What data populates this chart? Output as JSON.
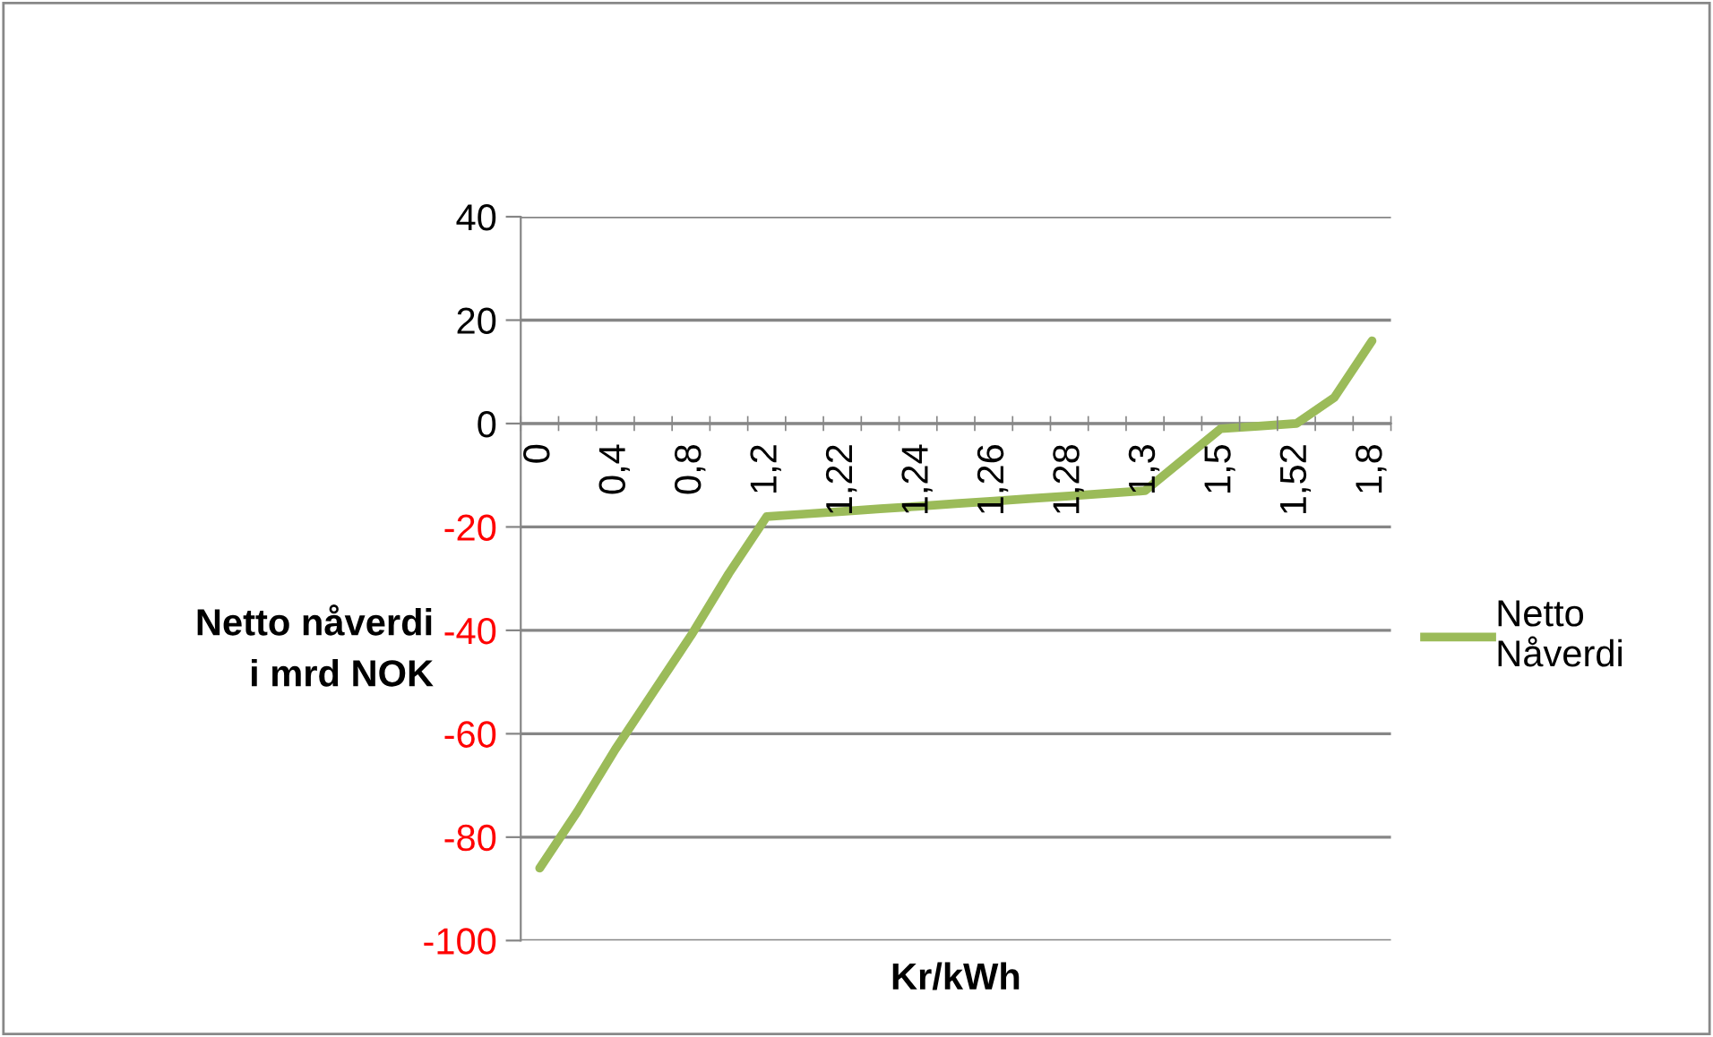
{
  "chart_data": {
    "type": "line",
    "xlabel": "Kr/kWh",
    "ylabel": "Netto nåverdi\ni mrd NOK",
    "categories": [
      "0",
      null,
      "0,4",
      null,
      "0,8",
      null,
      "1,2",
      null,
      "1,22",
      null,
      "1,24",
      null,
      "1,26",
      null,
      "1,28",
      null,
      "1,3",
      null,
      "1,5",
      null,
      "1,52",
      null,
      "1,8"
    ],
    "series": [
      {
        "name": "Netto\nNåverdi",
        "color": "#9bbb59",
        "values": [
          -86,
          -75,
          -63,
          -52,
          -41,
          -29,
          -18,
          -17.5,
          -17,
          -16.5,
          -16,
          -15.5,
          -15,
          -14.5,
          -14,
          -13.5,
          -13,
          -7,
          -1,
          -0.5,
          0,
          5,
          16
        ]
      }
    ],
    "ylim": [
      -100,
      40
    ],
    "yticks": [
      -100,
      -80,
      -60,
      -40,
      -20,
      0,
      20,
      40
    ],
    "grid": "y",
    "legend": "right",
    "marker": "none",
    "line_style": "solid"
  }
}
